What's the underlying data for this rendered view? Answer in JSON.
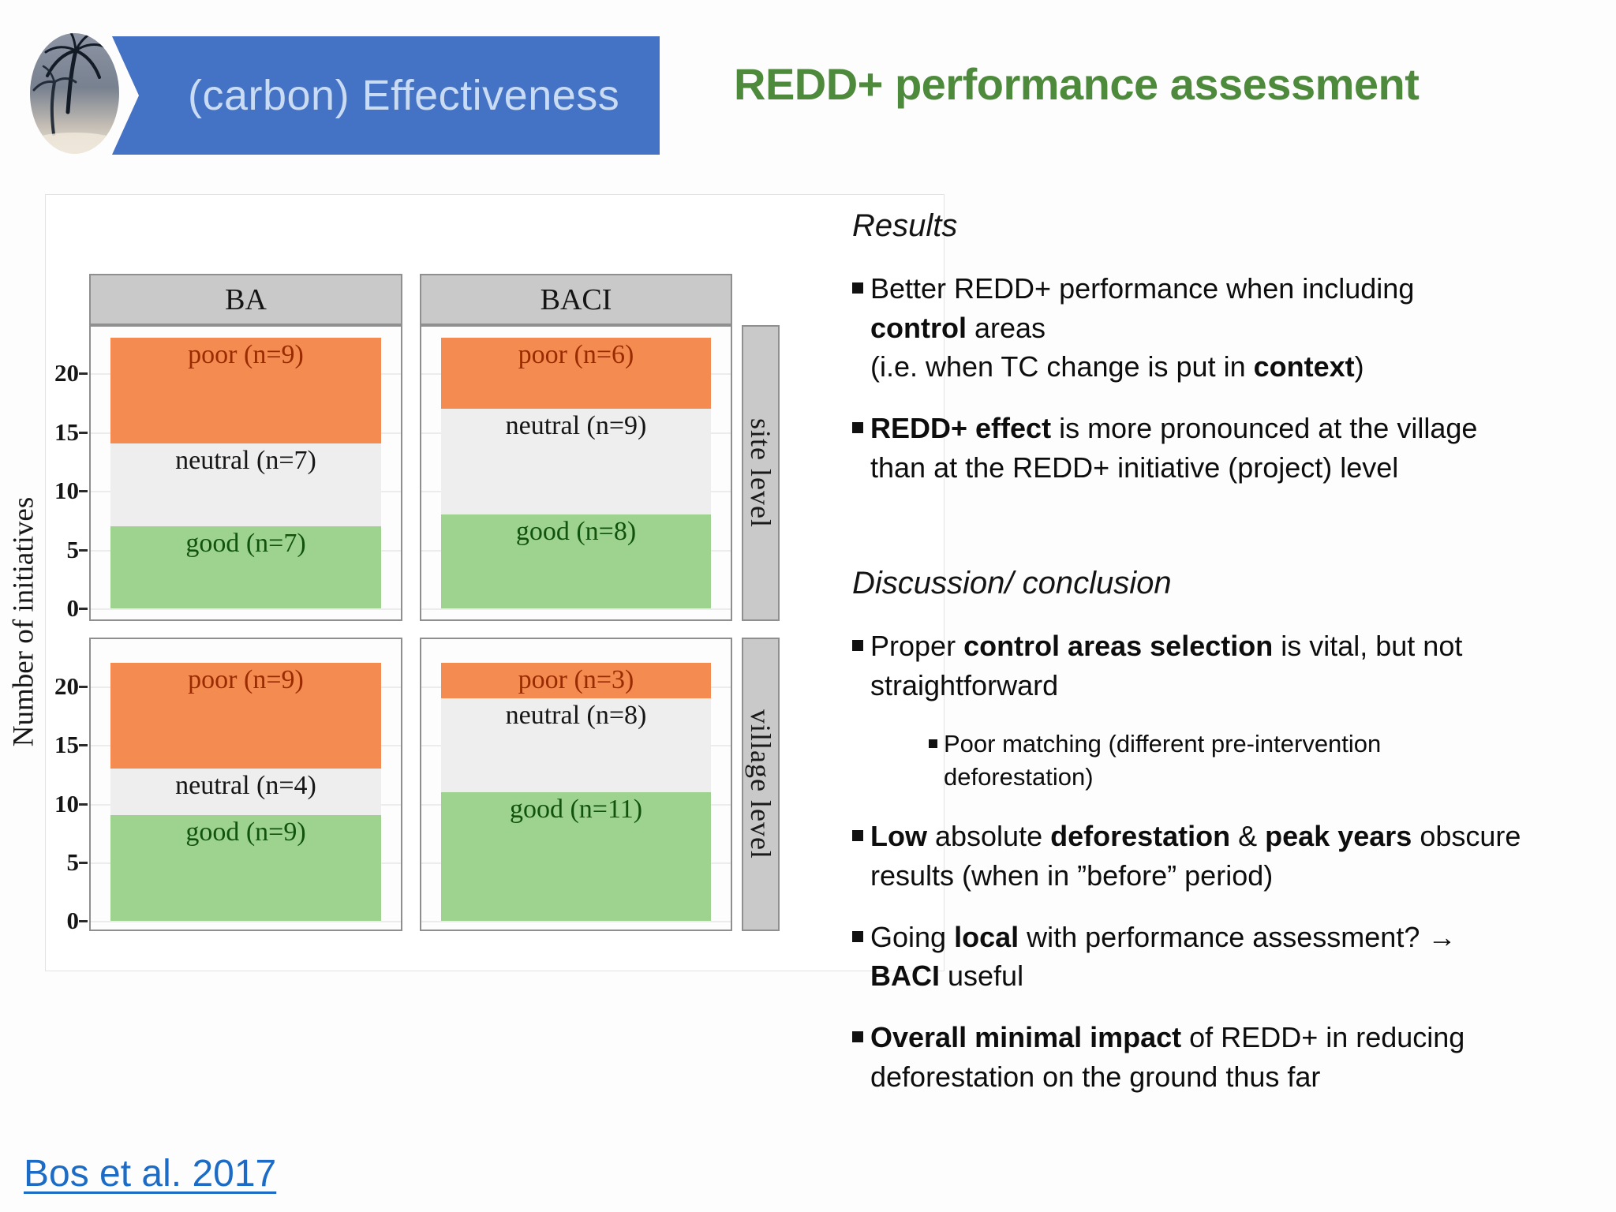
{
  "header": {
    "logo": "palm-trees-photo",
    "banner_label": "(carbon) Effectiveness",
    "title": "REDD+ performance assessment"
  },
  "chart_data": {
    "type": "bar",
    "stacked": true,
    "title": "",
    "ylabel": "Number of initiatives",
    "yticks": [
      0,
      5,
      10,
      15,
      20
    ],
    "ylim": [
      0,
      23
    ],
    "grid": true,
    "columns": [
      "BA",
      "BACI"
    ],
    "rows": [
      "site level",
      "village level"
    ],
    "colors": {
      "poor": "#f48b51",
      "neutral": "#efeeee",
      "good": "#9dd38f"
    },
    "label_colors": {
      "poor": "#9a2b00",
      "neutral": "#151515",
      "good": "#10530f"
    },
    "panels": [
      {
        "row": "site level",
        "column": "BA",
        "segments": [
          {
            "category": "good",
            "n": 7,
            "label": "good (n=7)"
          },
          {
            "category": "neutral",
            "n": 7,
            "label": "neutral (n=7)"
          },
          {
            "category": "poor",
            "n": 9,
            "label": "poor (n=9)"
          }
        ]
      },
      {
        "row": "site level",
        "column": "BACI",
        "segments": [
          {
            "category": "good",
            "n": 8,
            "label": "good (n=8)"
          },
          {
            "category": "neutral",
            "n": 9,
            "label": "neutral (n=9)"
          },
          {
            "category": "poor",
            "n": 6,
            "label": "poor (n=6)"
          }
        ]
      },
      {
        "row": "village level",
        "column": "BA",
        "segments": [
          {
            "category": "good",
            "n": 9,
            "label": "good (n=9)"
          },
          {
            "category": "neutral",
            "n": 4,
            "label": "neutral (n=4)"
          },
          {
            "category": "poor",
            "n": 9,
            "label": "poor (n=9)"
          }
        ]
      },
      {
        "row": "village level",
        "column": "BACI",
        "segments": [
          {
            "category": "good",
            "n": 11,
            "label": "good (n=11)"
          },
          {
            "category": "neutral",
            "n": 8,
            "label": "neutral (n=8)"
          },
          {
            "category": "poor",
            "n": 3,
            "label": "poor (n=3)"
          }
        ]
      }
    ]
  },
  "results": {
    "heading": "Results",
    "bullets": [
      {
        "level": 1,
        "segments": [
          {
            "t": "Better REDD+ performance when including\n",
            "b": false
          },
          {
            "t": "control",
            "b": true
          },
          {
            "t": " areas\n(i.e. when TC change is put in ",
            "b": false
          },
          {
            "t": "context",
            "b": true
          },
          {
            "t": ")",
            "b": false
          }
        ]
      },
      {
        "level": 1,
        "segments": [
          {
            "t": "REDD+ effect",
            "b": true
          },
          {
            "t": " is more pronounced at the village\nthan at the REDD+ initiative (project) level",
            "b": false
          }
        ]
      }
    ]
  },
  "discussion": {
    "heading": "Discussion/ conclusion",
    "bullets": [
      {
        "level": 1,
        "segments": [
          {
            "t": "Proper ",
            "b": false
          },
          {
            "t": "control areas selection",
            "b": true
          },
          {
            "t": " is vital, but not\nstraightforward",
            "b": false
          }
        ]
      },
      {
        "level": 2,
        "segments": [
          {
            "t": "Poor matching (different pre-intervention\ndeforestation)",
            "b": false
          }
        ]
      },
      {
        "level": 1,
        "segments": [
          {
            "t": "Low",
            "b": true
          },
          {
            "t": " absolute ",
            "b": false
          },
          {
            "t": "deforestation",
            "b": true
          },
          {
            "t": " & ",
            "b": false
          },
          {
            "t": "peak years",
            "b": true
          },
          {
            "t": " obscure\nresults (when in ”before” period)",
            "b": false
          }
        ]
      },
      {
        "level": 1,
        "segments": [
          {
            "t": "Going ",
            "b": false
          },
          {
            "t": "local",
            "b": true
          },
          {
            "t": " with performance assessment? →\n",
            "b": false
          },
          {
            "t": "BACI",
            "b": true
          },
          {
            "t": " useful",
            "b": false
          }
        ]
      },
      {
        "level": 1,
        "segments": [
          {
            "t": "Overall minimal impact",
            "b": true
          },
          {
            "t": " of REDD+ in reducing\ndeforestation on the ground thus far",
            "b": false
          }
        ]
      }
    ]
  },
  "citation": {
    "label": "Bos et al. 2017"
  }
}
